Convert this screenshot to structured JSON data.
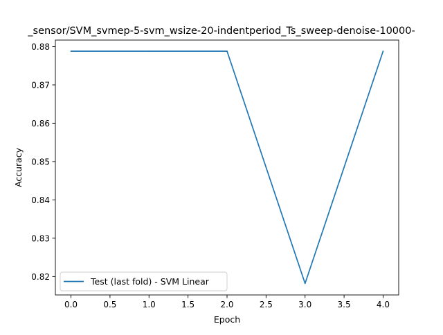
{
  "chart_data": {
    "type": "line",
    "title": "_sensor/SVM_svmep-5-svm_wsize-20-indentperiod_Ts_sweep-denoise-10000-",
    "xlabel": "Epoch",
    "ylabel": "Accuracy",
    "xlim": [
      -0.2,
      4.2
    ],
    "ylim": [
      0.8152,
      0.8817
    ],
    "x_ticks": [
      0.0,
      0.5,
      1.0,
      1.5,
      2.0,
      2.5,
      3.0,
      3.5,
      4.0
    ],
    "x_tick_labels": [
      "0.0",
      "0.5",
      "1.0",
      "1.5",
      "2.0",
      "2.5",
      "3.0",
      "3.5",
      "4.0"
    ],
    "y_ticks": [
      0.82,
      0.83,
      0.84,
      0.85,
      0.86,
      0.87,
      0.88
    ],
    "y_tick_labels": [
      "0.82",
      "0.83",
      "0.84",
      "0.85",
      "0.86",
      "0.87",
      "0.88"
    ],
    "grid": false,
    "legend_position": "lower-left",
    "series": [
      {
        "name": "Test (last fold) - SVM Linear",
        "color": "#1f77b4",
        "x": [
          0,
          1,
          2,
          3,
          4
        ],
        "y": [
          0.8788,
          0.8788,
          0.8788,
          0.8182,
          0.8788
        ]
      }
    ]
  }
}
